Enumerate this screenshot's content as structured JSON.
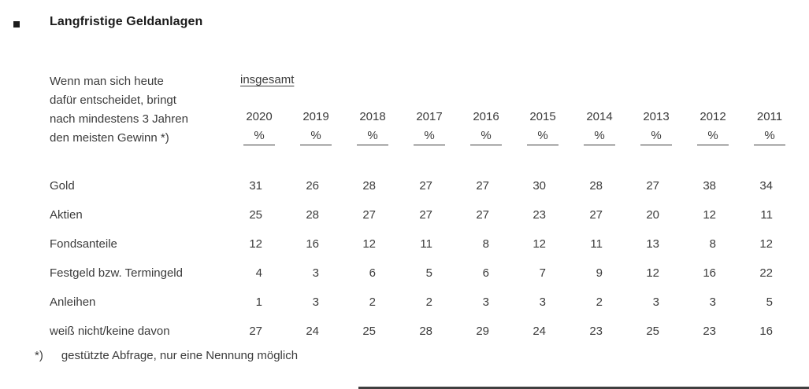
{
  "page": {
    "title": "Langfristige Geldanlagen",
    "question_lines": [
      "Wenn man sich heute",
      "dafür entscheidet, bringt",
      "nach mindestens 3 Jahren",
      "den meisten Gewinn *)"
    ],
    "group_label": "insgesamt",
    "footnote_marker": "*)",
    "footnote_text": "gestützte Abfrage, nur eine Nennung möglich"
  },
  "chart_data": {
    "type": "table",
    "title": "Langfristige Geldanlagen",
    "unit": "%",
    "columns": [
      "2020",
      "2019",
      "2018",
      "2017",
      "2016",
      "2015",
      "2014",
      "2013",
      "2012",
      "2011"
    ],
    "rows": [
      {
        "label": "Gold",
        "values": [
          31,
          26,
          28,
          27,
          27,
          30,
          28,
          27,
          38,
          34
        ]
      },
      {
        "label": "Aktien",
        "values": [
          25,
          28,
          27,
          27,
          27,
          23,
          27,
          20,
          12,
          11
        ]
      },
      {
        "label": "Fondsanteile",
        "values": [
          12,
          16,
          12,
          11,
          8,
          12,
          11,
          13,
          8,
          12
        ]
      },
      {
        "label": "Festgeld bzw. Termingeld",
        "values": [
          4,
          3,
          6,
          5,
          6,
          7,
          9,
          12,
          16,
          22
        ]
      },
      {
        "label": "Anleihen",
        "values": [
          1,
          3,
          2,
          2,
          3,
          3,
          2,
          3,
          3,
          5
        ]
      },
      {
        "label": "weiß nicht/keine davon",
        "values": [
          27,
          24,
          25,
          28,
          29,
          24,
          23,
          25,
          23,
          16
        ]
      }
    ]
  },
  "colors": {
    "text": "#3b3b3b",
    "title": "#1b1b1b",
    "rule": "#3b3b3b"
  }
}
